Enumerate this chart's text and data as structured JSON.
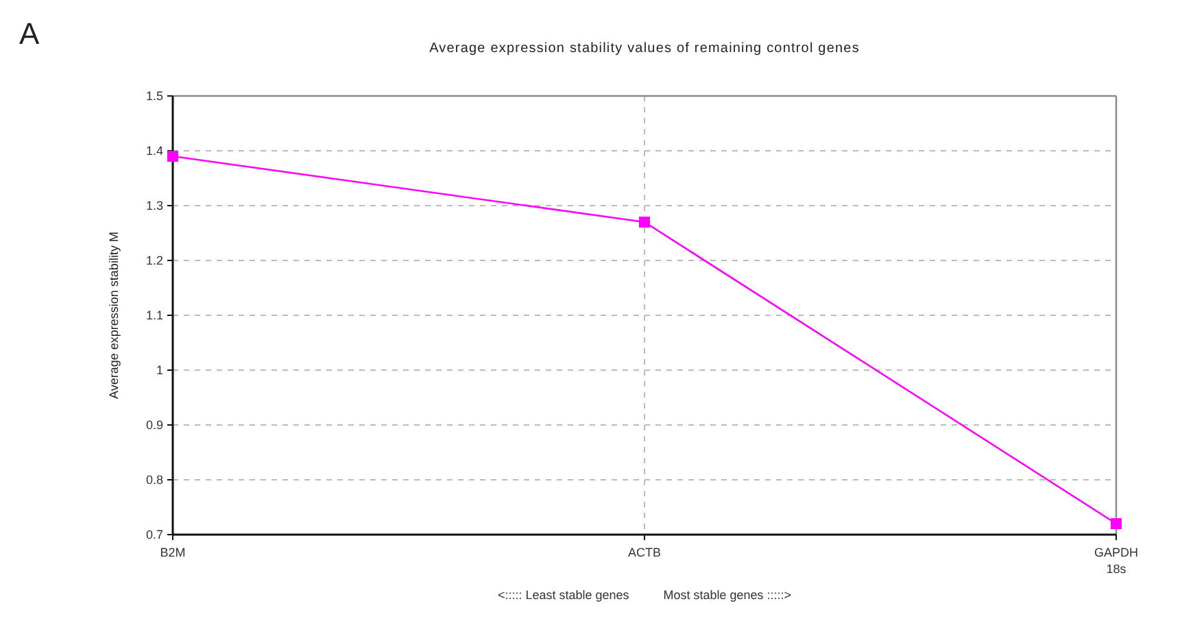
{
  "chart_data": {
    "type": "line",
    "title": "Average expression stability values of remaining control genes",
    "xlabel": "<::::: Least stable genes          Most stable genes :::::>",
    "ylabel": "Average expression stability M",
    "annotations": [
      "A"
    ],
    "categories": [
      "B2M",
      "ACTB",
      "GAPDH\n18s"
    ],
    "series": [
      {
        "color": "#ff00ff",
        "values": [
          1.39,
          1.27,
          0.72
        ]
      }
    ],
    "ylim": [
      0.7,
      1.5
    ],
    "yticks": [
      0.7,
      0.8,
      0.9,
      1,
      1.1,
      1.2,
      1.3,
      1.4,
      1.5
    ],
    "grid": true,
    "marker": "square",
    "line_style": "solid"
  }
}
